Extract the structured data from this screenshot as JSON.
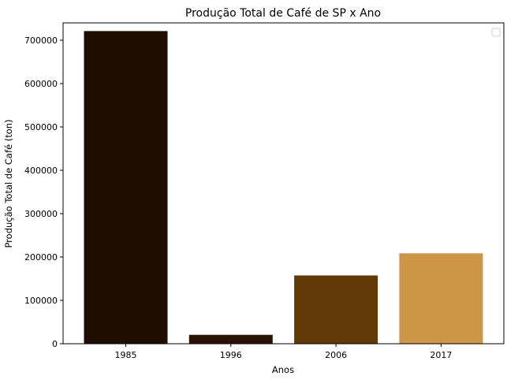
{
  "chart_data": {
    "type": "bar",
    "title": "Produção Total de Café de SP x Ano",
    "xlabel": "Anos",
    "ylabel": "Produção Total de Café (ton)",
    "categories": [
      "1985",
      "1996",
      "2006",
      "2017"
    ],
    "values": [
      721000,
      20500,
      157500,
      208500
    ],
    "colors": [
      "#1f0d02",
      "#2a1204",
      "#613905",
      "#cc9548"
    ],
    "ylim": [
      0,
      740000
    ],
    "yticks": [
      0,
      100000,
      200000,
      300000,
      400000,
      500000,
      600000,
      700000
    ],
    "ytick_labels": [
      "0",
      "100000",
      "200000",
      "300000",
      "400000",
      "500000",
      "600000",
      "700000"
    ],
    "grid": false,
    "legend": "top-right (empty)"
  }
}
